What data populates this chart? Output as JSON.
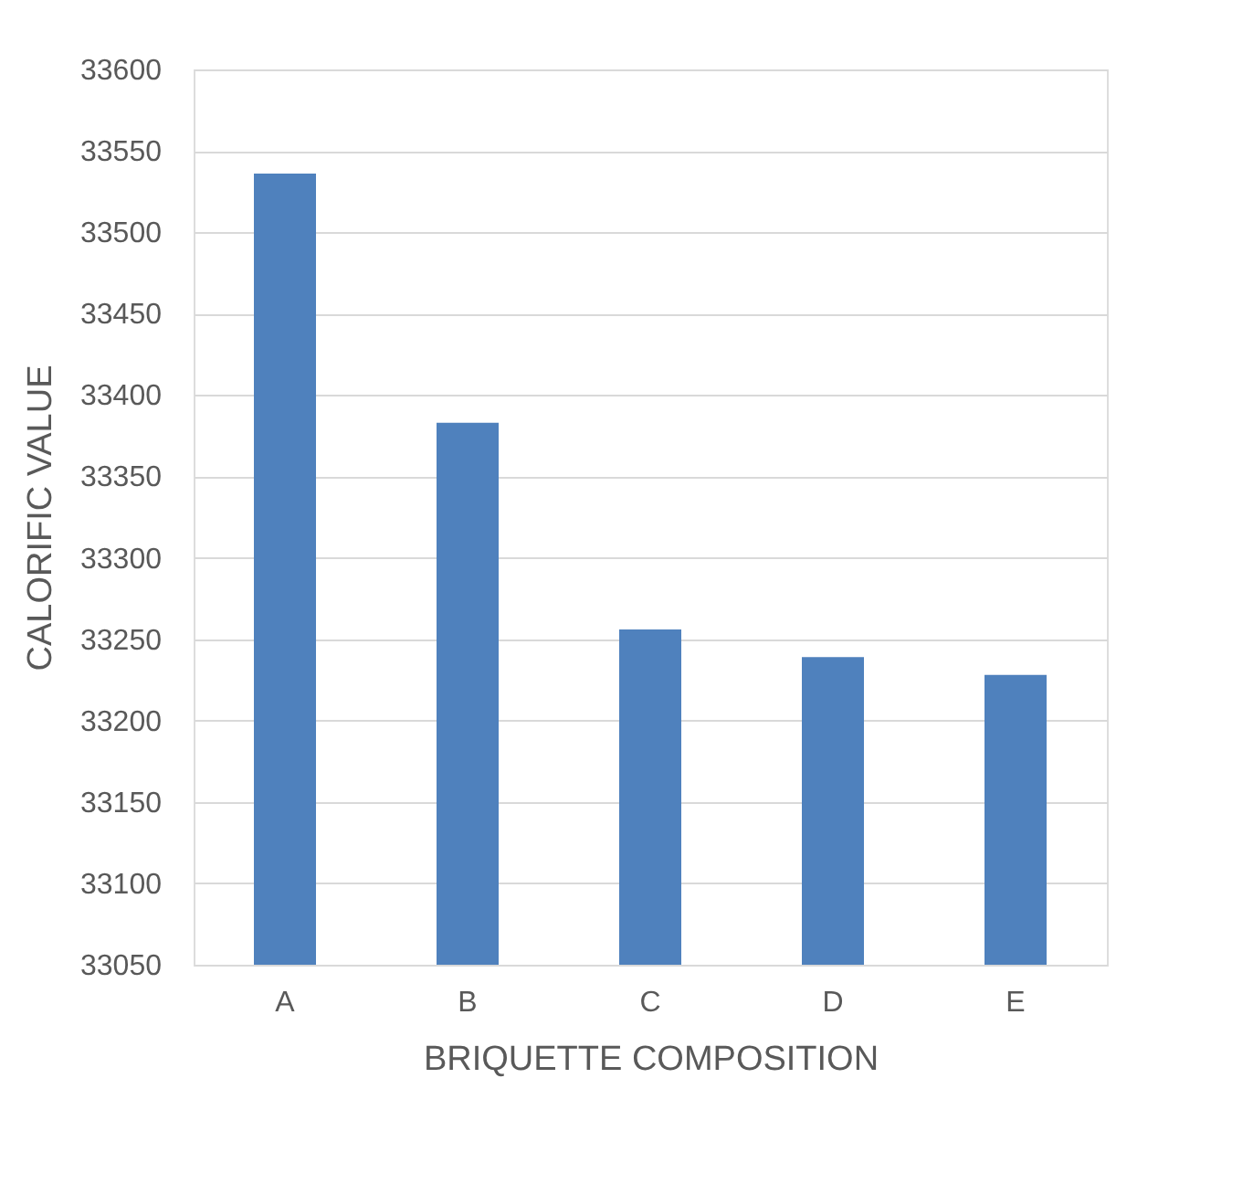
{
  "chart_data": {
    "type": "bar",
    "xlabel": "BRIQUETTE COMPOSITION",
    "ylabel": "CALORIFIC VALUE",
    "categories": [
      "A",
      "B",
      "C",
      "D",
      "E"
    ],
    "values": [
      33536,
      33383,
      33256,
      33239,
      33228
    ],
    "color": "#4f81bd",
    "ylim": [
      33050,
      33600
    ],
    "yticks": [
      33050,
      33100,
      33150,
      33200,
      33250,
      33300,
      33350,
      33400,
      33450,
      33500,
      33550,
      33600
    ],
    "grid": "y"
  }
}
